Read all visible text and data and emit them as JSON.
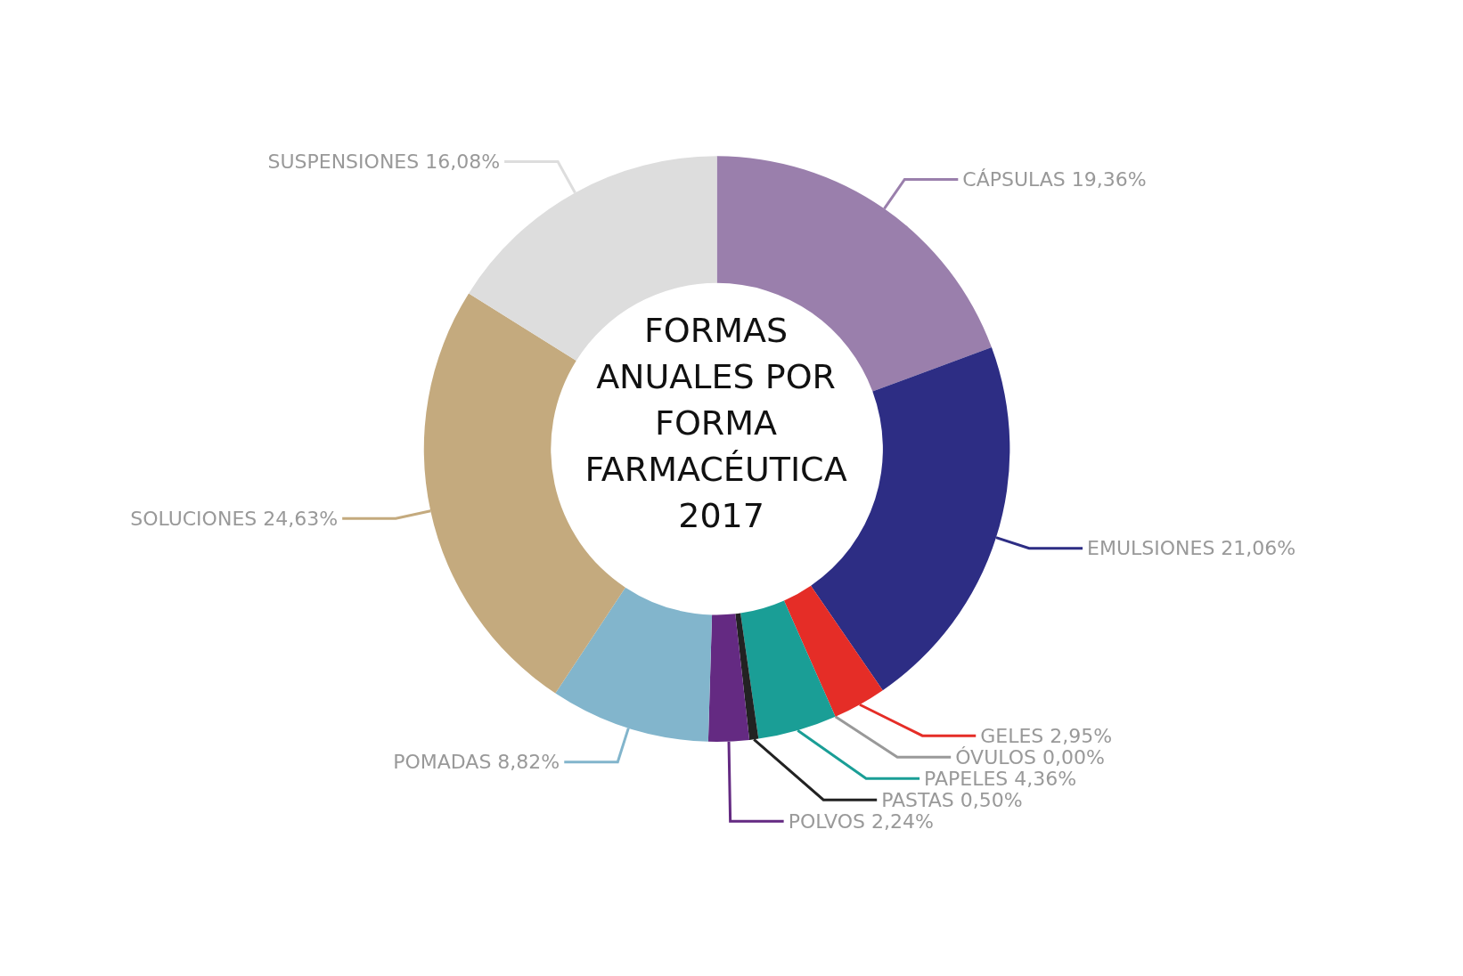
{
  "chart_data": {
    "type": "donut",
    "title": "FORMAS ANUALES POR FORMA FARMACÉUTICA 2017",
    "categories": [
      "CÁPSULAS",
      "EMULSIONES",
      "GELES",
      "ÓVULOS",
      "PAPELES",
      "PASTAS",
      "POLVOS",
      "POMADAS",
      "SOLUCIONES",
      "SUSPENSIONES"
    ],
    "values": [
      19.36,
      21.06,
      2.95,
      0.0,
      4.36,
      0.5,
      2.24,
      8.82,
      24.63,
      16.08
    ],
    "value_labels": [
      "19,36%",
      "21,06%",
      "2,95%",
      "0,00%",
      "4,36%",
      "0,50%",
      "2,24%",
      "8,82%",
      "24,63%",
      "16,08%"
    ],
    "colors": [
      "#9a7fac",
      "#2d2d84",
      "#e52d27",
      "#999999",
      "#1a9e96",
      "#222222",
      "#642a82",
      "#82b5cc",
      "#c4aa7e",
      "#dddddd"
    ],
    "legend": false
  }
}
